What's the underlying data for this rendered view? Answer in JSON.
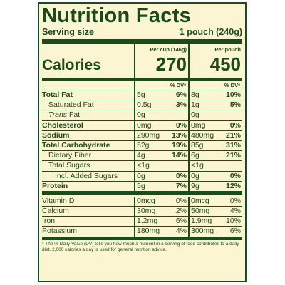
{
  "title": "Nutrition Facts",
  "serving": {
    "label": "Serving size",
    "value": "1 pouch (240g)"
  },
  "calories": {
    "label": "Calories",
    "col1_header": "Per cup (146g)",
    "col2_header": "Per pouch",
    "col1": "270",
    "col2": "450"
  },
  "dv_header": "% DV*",
  "rows": [
    {
      "name": "Total Fat",
      "a": "5g",
      "adv": "6%",
      "b": "8g",
      "bdv": "10%"
    },
    {
      "name": "Saturated Fat",
      "a": "0.5g",
      "adv": "3%",
      "b": "1g",
      "bdv": "5%"
    },
    {
      "prefix": "Trans",
      "name": " Fat",
      "a": "0g",
      "adv": "",
      "b": "0g",
      "bdv": ""
    },
    {
      "name": "Cholesterol",
      "a": "0mg",
      "adv": "0%",
      "b": "0mg",
      "bdv": "0%"
    },
    {
      "name": "Sodium",
      "a": "290mg",
      "adv": "13%",
      "b": "480mg",
      "bdv": "21%"
    },
    {
      "name": "Total Carbohydrate",
      "a": "52g",
      "adv": "19%",
      "b": "85g",
      "bdv": "31%"
    },
    {
      "name": "Dietary Fiber",
      "a": "4g",
      "adv": "14%",
      "b": "6g",
      "bdv": "21%"
    },
    {
      "name": "Total Sugars",
      "a": "<1g",
      "adv": "",
      "b": "<1g",
      "bdv": ""
    },
    {
      "name": "Incl. Added Sugars",
      "a": "0g",
      "adv": "0%",
      "b": "0g",
      "bdv": "0%"
    },
    {
      "name": "Protein",
      "a": "5g",
      "adv": "7%",
      "b": "9g",
      "bdv": "12%"
    }
  ],
  "vitamins": [
    {
      "name": "Vitamin D",
      "a": "0mcg",
      "adv": "0%",
      "b": "0mcg",
      "bdv": "0%"
    },
    {
      "name": "Calcium",
      "a": "30mg",
      "adv": "2%",
      "b": "50mg",
      "bdv": "4%"
    },
    {
      "name": "Iron",
      "a": "1.2mg",
      "adv": "6%",
      "b": "1.9mg",
      "bdv": "10%"
    },
    {
      "name": "Potassium",
      "a": "180mg",
      "adv": "4%",
      "b": "300mg",
      "bdv": "6%"
    }
  ],
  "footnote": "* The % Daily Value (DV) tells you how much a nutrient in a serving of food contributes to a daily diet. 2,000 calories a day is used for general nutrition advice.",
  "colors": {
    "ink": "#1d4a1d",
    "background": "#fcf5d2"
  }
}
